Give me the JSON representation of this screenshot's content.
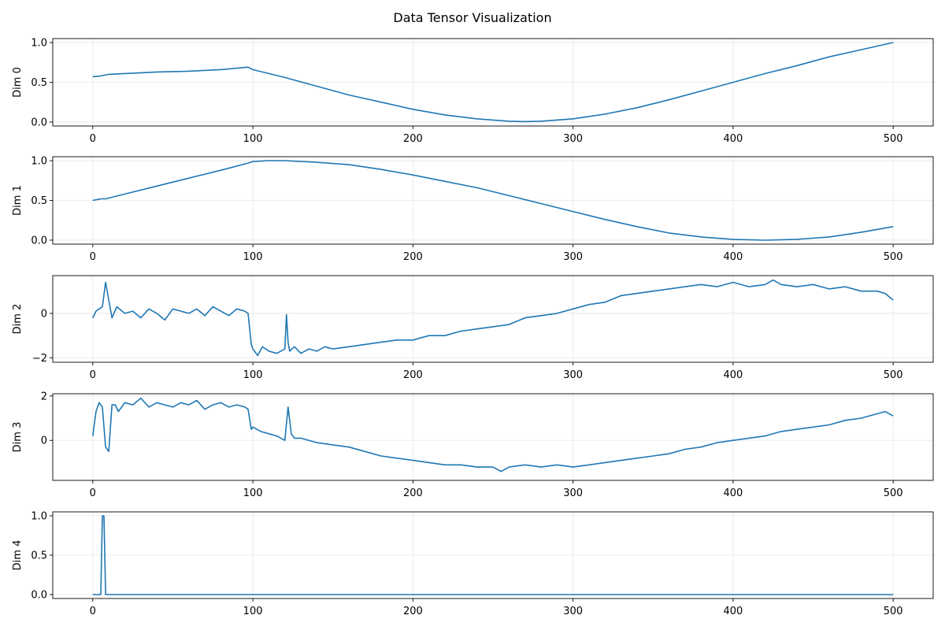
{
  "figure": {
    "title": "Data Tensor Visualization"
  },
  "colors": {
    "line": "#1f77b4",
    "grid": "#e6e6e6",
    "axis": "#000000"
  },
  "chart_data": [
    {
      "type": "line",
      "ylabel": "Dim 0",
      "xlim": [
        -25,
        525
      ],
      "ylim": [
        -0.05,
        1.05
      ],
      "xticks": [
        0,
        100,
        200,
        300,
        400,
        500
      ],
      "yticks": [
        0.0,
        0.5,
        1.0
      ],
      "ytick_labels": [
        "0.0",
        "0.5",
        "1.0"
      ],
      "grid": true,
      "series": [
        {
          "x": [
            0,
            5,
            10,
            20,
            40,
            60,
            80,
            97,
            100,
            120,
            140,
            160,
            180,
            200,
            220,
            240,
            260,
            270,
            280,
            300,
            320,
            340,
            360,
            380,
            400,
            420,
            440,
            460,
            480,
            500
          ],
          "y": [
            0.57,
            0.58,
            0.6,
            0.61,
            0.63,
            0.64,
            0.66,
            0.69,
            0.66,
            0.56,
            0.45,
            0.34,
            0.25,
            0.16,
            0.09,
            0.04,
            0.01,
            0.005,
            0.01,
            0.04,
            0.1,
            0.18,
            0.28,
            0.39,
            0.5,
            0.61,
            0.71,
            0.82,
            0.91,
            1.0
          ]
        }
      ]
    },
    {
      "type": "line",
      "ylabel": "Dim 1",
      "xlim": [
        -25,
        525
      ],
      "ylim": [
        -0.05,
        1.05
      ],
      "xticks": [
        0,
        100,
        200,
        300,
        400,
        500
      ],
      "yticks": [
        0.0,
        0.5,
        1.0
      ],
      "ytick_labels": [
        "0.0",
        "0.5",
        "1.0"
      ],
      "grid": true,
      "series": [
        {
          "x": [
            0,
            5,
            8,
            10,
            20,
            40,
            60,
            80,
            97,
            100,
            110,
            120,
            140,
            160,
            180,
            200,
            220,
            240,
            260,
            280,
            300,
            320,
            340,
            360,
            380,
            400,
            420,
            440,
            460,
            480,
            500
          ],
          "y": [
            0.5,
            0.52,
            0.52,
            0.53,
            0.58,
            0.68,
            0.78,
            0.88,
            0.97,
            0.99,
            1.0,
            1.0,
            0.98,
            0.95,
            0.89,
            0.82,
            0.74,
            0.66,
            0.56,
            0.46,
            0.36,
            0.26,
            0.17,
            0.09,
            0.04,
            0.01,
            0.0,
            0.01,
            0.04,
            0.1,
            0.17
          ]
        }
      ]
    },
    {
      "type": "line",
      "ylabel": "Dim 2",
      "xlim": [
        -25,
        525
      ],
      "ylim": [
        -2.2,
        1.7
      ],
      "xticks": [
        0,
        100,
        200,
        300,
        400,
        500
      ],
      "yticks": [
        -2,
        0
      ],
      "ytick_labels": [
        "−2",
        "0"
      ],
      "grid": true,
      "series": [
        {
          "x": [
            0,
            2,
            4,
            6,
            8,
            10,
            12,
            15,
            20,
            25,
            30,
            35,
            40,
            45,
            50,
            55,
            60,
            65,
            70,
            75,
            80,
            85,
            90,
            95,
            97,
            99,
            100,
            103,
            106,
            110,
            115,
            120,
            121,
            122,
            123,
            126,
            130,
            135,
            140,
            145,
            150,
            160,
            170,
            180,
            190,
            200,
            210,
            220,
            230,
            240,
            250,
            260,
            270,
            280,
            290,
            300,
            310,
            320,
            330,
            340,
            350,
            360,
            370,
            380,
            390,
            400,
            410,
            420,
            425,
            430,
            440,
            450,
            460,
            470,
            480,
            490,
            495,
            500
          ],
          "y": [
            -0.2,
            0.1,
            0.2,
            0.3,
            1.4,
            0.6,
            -0.2,
            0.3,
            0.0,
            0.1,
            -0.2,
            0.2,
            0.0,
            -0.3,
            0.2,
            0.1,
            0.0,
            0.2,
            -0.1,
            0.3,
            0.1,
            -0.1,
            0.2,
            0.1,
            0.0,
            -1.4,
            -1.6,
            -1.9,
            -1.5,
            -1.7,
            -1.8,
            -1.6,
            -0.05,
            -1.3,
            -1.7,
            -1.5,
            -1.8,
            -1.6,
            -1.7,
            -1.5,
            -1.6,
            -1.5,
            -1.4,
            -1.3,
            -1.2,
            -1.2,
            -1.0,
            -1.0,
            -0.8,
            -0.7,
            -0.6,
            -0.5,
            -0.2,
            -0.1,
            0.0,
            0.2,
            0.4,
            0.5,
            0.8,
            0.9,
            1.0,
            1.1,
            1.2,
            1.3,
            1.2,
            1.4,
            1.2,
            1.3,
            1.5,
            1.3,
            1.2,
            1.3,
            1.1,
            1.2,
            1.0,
            1.0,
            0.9,
            0.6
          ]
        }
      ]
    },
    {
      "type": "line",
      "ylabel": "Dim 3",
      "xlim": [
        -25,
        525
      ],
      "ylim": [
        -1.8,
        2.1
      ],
      "xticks": [
        0,
        100,
        200,
        300,
        400,
        500
      ],
      "yticks": [
        0,
        2
      ],
      "ytick_labels": [
        "0",
        "2"
      ],
      "grid": true,
      "series": [
        {
          "x": [
            0,
            2,
            4,
            6,
            8,
            10,
            12,
            14,
            16,
            20,
            25,
            30,
            35,
            40,
            45,
            50,
            55,
            60,
            65,
            70,
            75,
            80,
            85,
            90,
            95,
            97,
            99,
            100,
            105,
            110,
            115,
            120,
            122,
            124,
            126,
            130,
            140,
            150,
            160,
            170,
            180,
            190,
            200,
            210,
            220,
            230,
            240,
            250,
            255,
            260,
            270,
            280,
            290,
            300,
            310,
            320,
            330,
            340,
            350,
            360,
            370,
            380,
            390,
            400,
            410,
            420,
            430,
            440,
            450,
            460,
            470,
            480,
            490,
            495,
            500
          ],
          "y": [
            0.2,
            1.3,
            1.7,
            1.5,
            -0.3,
            -0.5,
            1.6,
            1.6,
            1.3,
            1.7,
            1.6,
            1.9,
            1.5,
            1.7,
            1.6,
            1.5,
            1.7,
            1.6,
            1.8,
            1.4,
            1.6,
            1.7,
            1.5,
            1.6,
            1.5,
            1.4,
            0.5,
            0.6,
            0.4,
            0.3,
            0.2,
            0.0,
            1.5,
            0.3,
            0.1,
            0.1,
            -0.1,
            -0.2,
            -0.3,
            -0.5,
            -0.7,
            -0.8,
            -0.9,
            -1.0,
            -1.1,
            -1.1,
            -1.2,
            -1.2,
            -1.4,
            -1.2,
            -1.1,
            -1.2,
            -1.1,
            -1.2,
            -1.1,
            -1.0,
            -0.9,
            -0.8,
            -0.7,
            -0.6,
            -0.4,
            -0.3,
            -0.1,
            0.0,
            0.1,
            0.2,
            0.4,
            0.5,
            0.6,
            0.7,
            0.9,
            1.0,
            1.2,
            1.3,
            1.1
          ]
        }
      ]
    },
    {
      "type": "line",
      "ylabel": "Dim 4",
      "xlim": [
        -25,
        525
      ],
      "ylim": [
        -0.05,
        1.05
      ],
      "xticks": [
        0,
        100,
        200,
        300,
        400,
        500
      ],
      "yticks": [
        0.0,
        0.5,
        1.0
      ],
      "ytick_labels": [
        "0.0",
        "0.5",
        "1.0"
      ],
      "grid": true,
      "series": [
        {
          "x": [
            0,
            5,
            6,
            7,
            8,
            500
          ],
          "y": [
            0,
            0,
            1,
            1,
            0,
            0
          ]
        }
      ]
    }
  ]
}
